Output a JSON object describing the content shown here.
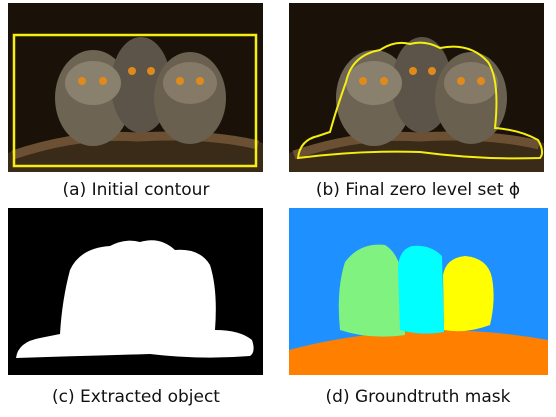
{
  "figure": {
    "panels": [
      {
        "caption": "(a) Initial contour"
      },
      {
        "caption": "(b) Final zero level set ϕ"
      },
      {
        "caption": "(c) Extracted object"
      },
      {
        "caption": "(d) Groundtruth mask"
      }
    ]
  }
}
